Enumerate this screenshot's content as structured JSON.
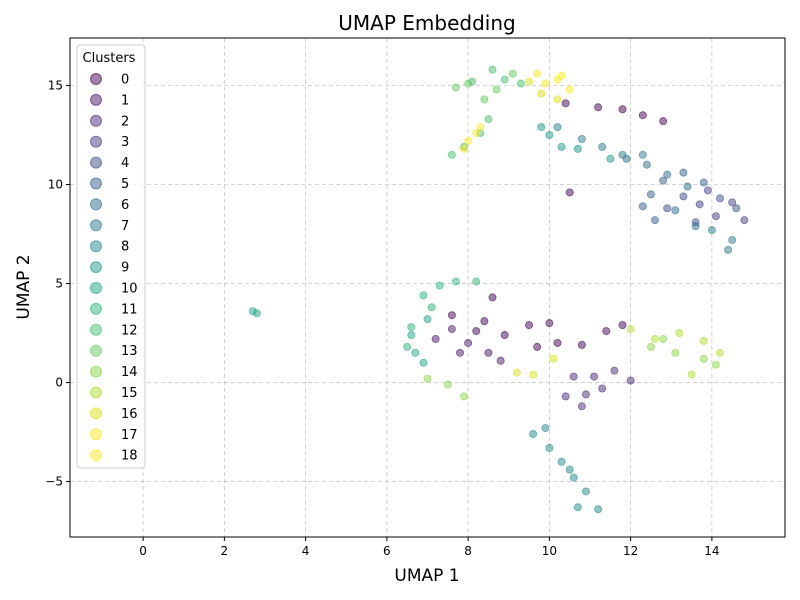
{
  "chart_data": {
    "type": "scatter",
    "title": "UMAP Embedding",
    "xlabel": "UMAP 1",
    "ylabel": "UMAP 2",
    "xlim": [
      -1.8,
      15.8
    ],
    "ylim": [
      -7.8,
      17.4
    ],
    "xticks": [
      0,
      2,
      4,
      6,
      8,
      10,
      12,
      14
    ],
    "yticks": [
      -5,
      0,
      5,
      10,
      15
    ],
    "tick_labels_x": [
      "0",
      "2",
      "4",
      "6",
      "8",
      "10",
      "12",
      "14"
    ],
    "tick_labels_y": [
      "−5",
      "0",
      "5",
      "10",
      "15"
    ],
    "grid": true,
    "legend": {
      "title": "Clusters",
      "placement": "upper-left"
    },
    "marker_alpha": 0.5,
    "series": [
      {
        "name": "0",
        "color": "#440154",
        "points": [
          [
            10.4,
            14.1
          ],
          [
            11.2,
            13.9
          ],
          [
            11.8,
            13.8
          ],
          [
            12.3,
            13.5
          ],
          [
            12.8,
            13.2
          ],
          [
            10.5,
            9.6
          ],
          [
            8.4,
            3.1
          ],
          [
            8.9,
            2.4
          ],
          [
            9.5,
            2.9
          ],
          [
            10.0,
            3.0
          ],
          [
            10.2,
            2.0
          ],
          [
            10.8,
            1.9
          ],
          [
            11.4,
            2.6
          ],
          [
            11.8,
            2.9
          ],
          [
            8.6,
            4.3
          ],
          [
            7.6,
            3.4
          ],
          [
            8.2,
            2.6
          ],
          [
            9.7,
            1.8
          ]
        ]
      },
      {
        "name": "1",
        "color": "#481769",
        "points": [
          [
            7.2,
            2.2
          ],
          [
            7.6,
            2.7
          ],
          [
            8.0,
            2.0
          ],
          [
            7.8,
            1.5
          ],
          [
            8.5,
            1.5
          ],
          [
            8.8,
            1.1
          ]
        ]
      },
      {
        "name": "2",
        "color": "#472a7a",
        "points": [
          [
            10.6,
            0.3
          ],
          [
            11.1,
            0.3
          ],
          [
            11.6,
            0.6
          ],
          [
            12.0,
            0.1
          ],
          [
            10.4,
            -0.7
          ],
          [
            10.9,
            -0.6
          ],
          [
            11.3,
            -0.3
          ],
          [
            10.8,
            -1.2
          ]
        ]
      },
      {
        "name": "3",
        "color": "#433d84",
        "points": [
          [
            13.7,
            9.0
          ],
          [
            14.1,
            8.4
          ],
          [
            14.5,
            9.1
          ],
          [
            14.8,
            8.2
          ],
          [
            13.9,
            9.7
          ]
        ]
      },
      {
        "name": "4",
        "color": "#3d4e8a",
        "points": [
          [
            13.3,
            9.4
          ],
          [
            13.6,
            8.1
          ],
          [
            14.2,
            9.3
          ],
          [
            14.6,
            8.8
          ],
          [
            12.9,
            8.8
          ]
        ]
      },
      {
        "name": "5",
        "color": "#355e8d",
        "points": [
          [
            12.5,
            9.5
          ],
          [
            12.8,
            10.2
          ],
          [
            13.3,
            10.6
          ],
          [
            13.8,
            10.1
          ],
          [
            12.3,
            8.9
          ],
          [
            12.6,
            8.2
          ]
        ]
      },
      {
        "name": "6",
        "color": "#2e6d8e",
        "points": [
          [
            11.9,
            11.3
          ],
          [
            12.4,
            11.0
          ],
          [
            12.9,
            10.5
          ],
          [
            13.4,
            9.9
          ],
          [
            13.1,
            8.7
          ],
          [
            13.6,
            7.9
          ]
        ]
      },
      {
        "name": "7",
        "color": "#297b8e",
        "points": [
          [
            10.2,
            12.9
          ],
          [
            10.8,
            12.3
          ],
          [
            11.3,
            11.9
          ],
          [
            11.8,
            11.5
          ],
          [
            12.3,
            11.5
          ],
          [
            14.0,
            7.7
          ],
          [
            14.5,
            7.2
          ],
          [
            14.4,
            6.7
          ]
        ]
      },
      {
        "name": "8",
        "color": "#23898e",
        "points": [
          [
            9.6,
            -2.6
          ],
          [
            10.0,
            -3.3
          ],
          [
            10.3,
            -4.0
          ],
          [
            10.6,
            -4.8
          ],
          [
            10.9,
            -5.5
          ],
          [
            11.2,
            -6.4
          ],
          [
            10.7,
            -6.3
          ],
          [
            10.5,
            -4.4
          ],
          [
            9.9,
            -2.3
          ]
        ]
      },
      {
        "name": "9",
        "color": "#1f978b",
        "points": [
          [
            10.0,
            12.5
          ],
          [
            10.7,
            11.8
          ],
          [
            11.5,
            11.3
          ],
          [
            10.3,
            11.9
          ],
          [
            9.8,
            12.9
          ]
        ]
      },
      {
        "name": "10",
        "color": "#21a585",
        "points": [
          [
            2.7,
            3.6
          ],
          [
            2.8,
            3.5
          ],
          [
            6.6,
            2.4
          ],
          [
            6.7,
            1.5
          ],
          [
            6.9,
            1.0
          ],
          [
            7.0,
            3.2
          ]
        ]
      },
      {
        "name": "11",
        "color": "#2eb37c",
        "points": [
          [
            6.9,
            4.4
          ],
          [
            7.3,
            4.9
          ],
          [
            7.7,
            5.1
          ],
          [
            8.2,
            5.1
          ],
          [
            6.6,
            2.8
          ],
          [
            6.5,
            1.8
          ],
          [
            7.1,
            3.8
          ]
        ]
      },
      {
        "name": "12",
        "color": "#46c06f",
        "points": [
          [
            8.6,
            15.8
          ],
          [
            8.9,
            15.3
          ],
          [
            9.3,
            15.1
          ],
          [
            8.5,
            13.3
          ],
          [
            8.3,
            12.6
          ],
          [
            7.9,
            11.9
          ],
          [
            7.6,
            11.5
          ],
          [
            8.1,
            15.2
          ]
        ]
      },
      {
        "name": "13",
        "color": "#65cb5e",
        "points": [
          [
            7.7,
            14.9
          ],
          [
            8.0,
            15.1
          ],
          [
            8.7,
            14.8
          ],
          [
            9.1,
            15.6
          ],
          [
            8.4,
            14.3
          ]
        ]
      },
      {
        "name": "14",
        "color": "#89d548",
        "points": [
          [
            7.0,
            0.2
          ],
          [
            7.5,
            -0.1
          ],
          [
            7.9,
            -0.7
          ],
          [
            12.5,
            1.8
          ],
          [
            13.1,
            1.5
          ],
          [
            13.8,
            1.2
          ],
          [
            14.1,
            0.9
          ],
          [
            12.8,
            2.2
          ]
        ]
      },
      {
        "name": "15",
        "color": "#b0dd2f",
        "points": [
          [
            12.0,
            2.7
          ],
          [
            12.6,
            2.2
          ],
          [
            13.2,
            2.5
          ],
          [
            13.8,
            2.1
          ],
          [
            14.2,
            1.5
          ],
          [
            13.5,
            0.4
          ]
        ]
      },
      {
        "name": "16",
        "color": "#d8e219",
        "points": [
          [
            9.2,
            0.5
          ],
          [
            9.6,
            0.4
          ],
          [
            10.1,
            1.2
          ],
          [
            9.8,
            14.6
          ],
          [
            10.2,
            14.3
          ],
          [
            9.5,
            15.2
          ]
        ]
      },
      {
        "name": "17",
        "color": "#fde725",
        "points": [
          [
            9.7,
            15.6
          ],
          [
            10.2,
            15.3
          ],
          [
            10.5,
            14.8
          ],
          [
            7.9,
            11.8
          ],
          [
            8.2,
            12.6
          ],
          [
            8.3,
            12.9
          ]
        ]
      },
      {
        "name": "18",
        "color": "#fde725",
        "points": [
          [
            9.9,
            15.1
          ],
          [
            10.3,
            15.5
          ],
          [
            8.0,
            12.2
          ]
        ]
      }
    ]
  }
}
